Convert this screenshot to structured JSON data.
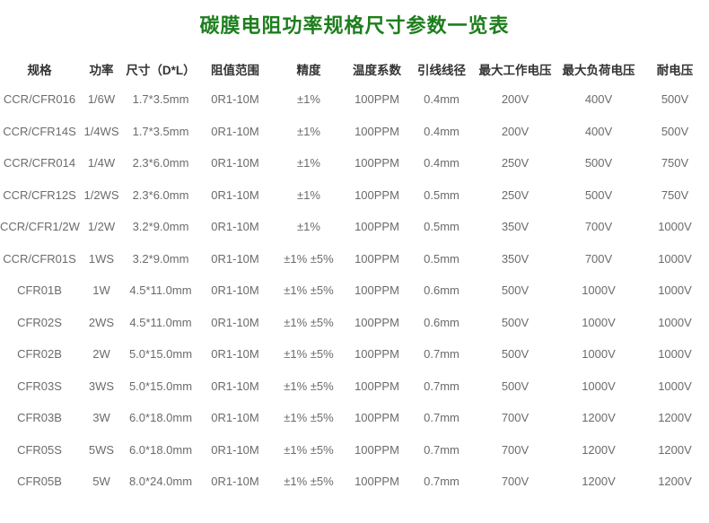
{
  "title": "碳膜电阻功率规格尺寸参数一览表",
  "colors": {
    "title_green": "#1e7e1e",
    "header_text": "#333333",
    "body_text": "#6b6b6b",
    "background": "#ffffff"
  },
  "table": {
    "headers": [
      "规格",
      "功率",
      "尺寸（D*L）",
      "阻值范围",
      "精度",
      "温度系数",
      "引线线径",
      "最大工作电压",
      "最大负荷电压",
      "耐电压"
    ],
    "rows": [
      [
        "CCR/CFR016",
        "1/6W",
        "1.7*3.5mm",
        "0R1-10M",
        "±1%",
        "100PPM",
        "0.4mm",
        "200V",
        "400V",
        "500V"
      ],
      [
        "CCR/CFR14S",
        "1/4WS",
        "1.7*3.5mm",
        "0R1-10M",
        "±1%",
        "100PPM",
        "0.4mm",
        "200V",
        "400V",
        "500V"
      ],
      [
        "CCR/CFR014",
        "1/4W",
        "2.3*6.0mm",
        "0R1-10M",
        "±1%",
        "100PPM",
        "0.4mm",
        "250V",
        "500V",
        "750V"
      ],
      [
        "CCR/CFR12S",
        "1/2WS",
        "2.3*6.0mm",
        "0R1-10M",
        "±1%",
        "100PPM",
        "0.5mm",
        "250V",
        "500V",
        "750V"
      ],
      [
        "CCR/CFR1/2W",
        "1/2W",
        "3.2*9.0mm",
        "0R1-10M",
        "±1%",
        "100PPM",
        "0.5mm",
        "350V",
        "700V",
        "1000V"
      ],
      [
        "CCR/CFR01S",
        "1WS",
        "3.2*9.0mm",
        "0R1-10M",
        "±1% ±5%",
        "100PPM",
        "0.5mm",
        "350V",
        "700V",
        "1000V"
      ],
      [
        "CFR01B",
        "1W",
        "4.5*11.0mm",
        "0R1-10M",
        "±1% ±5%",
        "100PPM",
        "0.6mm",
        "500V",
        "1000V",
        "1000V"
      ],
      [
        "CFR02S",
        "2WS",
        "4.5*11.0mm",
        "0R1-10M",
        "±1% ±5%",
        "100PPM",
        "0.6mm",
        "500V",
        "1000V",
        "1000V"
      ],
      [
        "CFR02B",
        "2W",
        "5.0*15.0mm",
        "0R1-10M",
        "±1% ±5%",
        "100PPM",
        "0.7mm",
        "500V",
        "1000V",
        "1000V"
      ],
      [
        "CFR03S",
        "3WS",
        "5.0*15.0mm",
        "0R1-10M",
        "±1% ±5%",
        "100PPM",
        "0.7mm",
        "500V",
        "1000V",
        "1000V"
      ],
      [
        "CFR03B",
        "3W",
        "6.0*18.0mm",
        "0R1-10M",
        "±1% ±5%",
        "100PPM",
        "0.7mm",
        "700V",
        "1200V",
        "1200V"
      ],
      [
        "CFR05S",
        "5WS",
        "6.0*18.0mm",
        "0R1-10M",
        "±1% ±5%",
        "100PPM",
        "0.7mm",
        "700V",
        "1200V",
        "1200V"
      ],
      [
        "CFR05B",
        "5W",
        "8.0*24.0mm",
        "0R1-10M",
        "±1% ±5%",
        "100PPM",
        "0.7mm",
        "700V",
        "1200V",
        "1200V"
      ]
    ]
  }
}
